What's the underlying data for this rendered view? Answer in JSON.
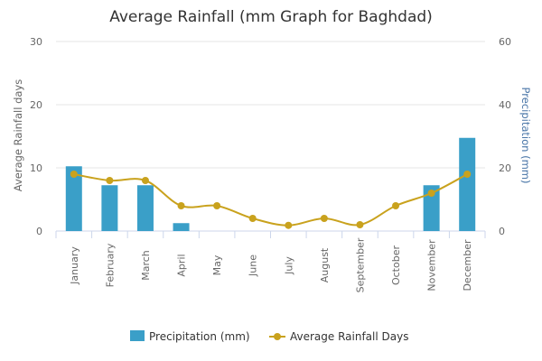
{
  "chart_data": {
    "type": "bar",
    "title": "Average Rainfall (mm Graph for Baghdad)",
    "categories": [
      "January",
      "February",
      "March",
      "April",
      "May",
      "June",
      "July",
      "August",
      "September",
      "October",
      "November",
      "December"
    ],
    "y_left": {
      "label": "Average Rainfall days",
      "lim": [
        0,
        30
      ],
      "ticks": [
        0,
        10,
        20,
        30
      ]
    },
    "y_right": {
      "label": "Precipitation (mm)",
      "lim": [
        0,
        60
      ],
      "ticks": [
        0,
        20,
        40,
        60
      ],
      "color": "#4a76a8"
    },
    "series": [
      {
        "name": "Precipitation (mm)",
        "type": "bar",
        "axis": "right",
        "color": "#3a9fc8",
        "values": [
          20.5,
          14.5,
          14.5,
          2.5,
          0,
          0,
          0,
          0,
          0,
          0,
          14.5,
          29.5
        ]
      },
      {
        "name": "Average Rainfall Days",
        "type": "line",
        "axis": "left",
        "color": "#c9a21d",
        "values": [
          9,
          8,
          8,
          4,
          4,
          2,
          0.9,
          2,
          1,
          4,
          6,
          9
        ]
      }
    ],
    "legend": "bottom-center",
    "grid": true
  }
}
